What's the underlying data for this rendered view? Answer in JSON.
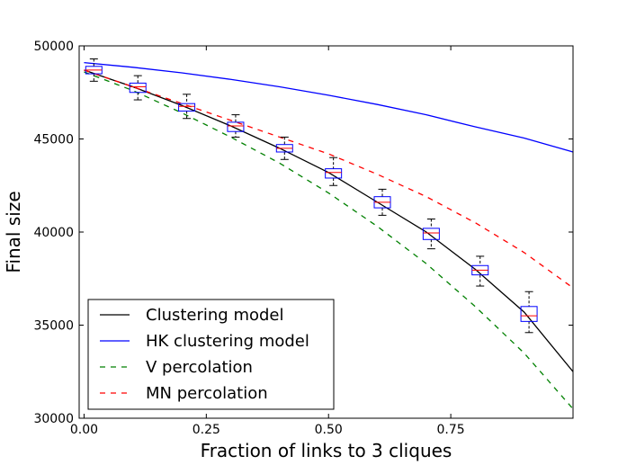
{
  "chart_data": {
    "type": "line",
    "title": "",
    "xlabel": "Fraction of links to 3 cliques",
    "ylabel": "Final size",
    "xlim": [
      -0.01,
      1.0
    ],
    "ylim": [
      30000,
      50000
    ],
    "xticks": [
      0.0,
      0.25,
      0.5,
      0.75
    ],
    "xtick_labels": [
      "0.00",
      "0.25",
      "0.50",
      "0.75"
    ],
    "yticks": [
      30000,
      35000,
      40000,
      45000,
      50000
    ],
    "ytick_labels": [
      "30000",
      "35000",
      "40000",
      "45000",
      "50000"
    ],
    "grid": false,
    "legend_position": "lower-left",
    "series": [
      {
        "name": "Clustering model",
        "color": "#000000",
        "style": "solid",
        "x": [
          0.0,
          0.1,
          0.2,
          0.3,
          0.4,
          0.5,
          0.6,
          0.7,
          0.8,
          0.9,
          1.0
        ],
        "y": [
          48700,
          47800,
          46800,
          45700,
          44500,
          43200,
          41600,
          40000,
          38000,
          35700,
          32500
        ]
      },
      {
        "name": "HK clustering model",
        "color": "#0000ff",
        "style": "solid",
        "x": [
          0.0,
          0.1,
          0.2,
          0.3,
          0.4,
          0.5,
          0.6,
          0.7,
          0.8,
          0.9,
          1.0
        ],
        "y": [
          49100,
          48850,
          48550,
          48200,
          47800,
          47350,
          46850,
          46300,
          45650,
          45050,
          44300
        ]
      },
      {
        "name": "V percolation",
        "color": "#008000",
        "style": "dashed",
        "x": [
          0.0,
          0.1,
          0.2,
          0.3,
          0.4,
          0.5,
          0.6,
          0.7,
          0.8,
          0.9,
          1.0
        ],
        "y": [
          48600,
          47600,
          46400,
          45100,
          43700,
          42100,
          40300,
          38300,
          36000,
          33500,
          30500
        ]
      },
      {
        "name": "MN percolation",
        "color": "#ff0000",
        "style": "dashed",
        "x": [
          0.0,
          0.1,
          0.2,
          0.3,
          0.4,
          0.5,
          0.6,
          0.7,
          0.8,
          0.9,
          1.0
        ],
        "y": [
          48700,
          47800,
          46900,
          46000,
          45100,
          44200,
          43100,
          41900,
          40500,
          38900,
          37000
        ]
      }
    ],
    "boxplots": [
      {
        "x": 0.02,
        "whislo": 48100,
        "q1": 48500,
        "med": 48700,
        "q3": 48900,
        "whishi": 49300
      },
      {
        "x": 0.11,
        "whislo": 47100,
        "q1": 47500,
        "med": 47800,
        "q3": 48000,
        "whishi": 48400
      },
      {
        "x": 0.21,
        "whislo": 46100,
        "q1": 46500,
        "med": 46750,
        "q3": 46900,
        "whishi": 47400
      },
      {
        "x": 0.31,
        "whislo": 45100,
        "q1": 45400,
        "med": 45700,
        "q3": 45900,
        "whishi": 46300
      },
      {
        "x": 0.41,
        "whislo": 43900,
        "q1": 44300,
        "med": 44500,
        "q3": 44700,
        "whishi": 45100
      },
      {
        "x": 0.51,
        "whislo": 42500,
        "q1": 42900,
        "med": 43200,
        "q3": 43400,
        "whishi": 44000
      },
      {
        "x": 0.61,
        "whislo": 40900,
        "q1": 41300,
        "med": 41600,
        "q3": 41900,
        "whishi": 42300
      },
      {
        "x": 0.71,
        "whislo": 39100,
        "q1": 39600,
        "med": 39950,
        "q3": 40200,
        "whishi": 40700
      },
      {
        "x": 0.81,
        "whislo": 37100,
        "q1": 37700,
        "med": 37950,
        "q3": 38200,
        "whishi": 38700
      },
      {
        "x": 0.91,
        "whislo": 34600,
        "q1": 35200,
        "med": 35500,
        "q3": 36000,
        "whishi": 36800
      }
    ],
    "box_color": "#0000ff",
    "median_color": "#ff0000",
    "whisker_color": "#000000"
  }
}
